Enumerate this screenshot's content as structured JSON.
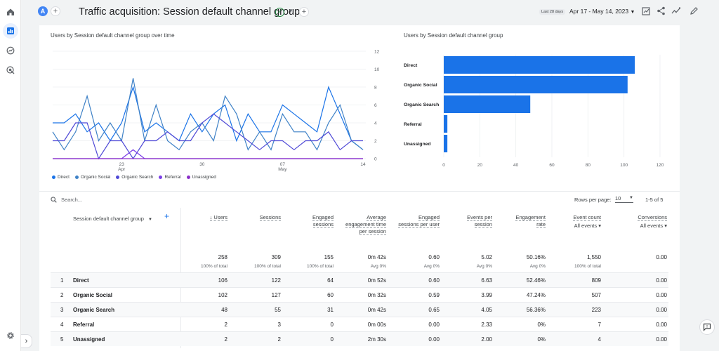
{
  "header": {
    "avatar_letter": "A",
    "title": "Traffic acquisition: Session default channel group",
    "date_chip": "Last 28 days",
    "date_range": "Apr 17 - May 14, 2023"
  },
  "line_chart": {
    "title": "Users by Session default channel group over time",
    "y_ticks": [
      "12",
      "10",
      "8",
      "6",
      "4",
      "2",
      "0"
    ],
    "x_ticks": [
      {
        "day": "23",
        "month": "Apr"
      },
      {
        "day": "30",
        "month": ""
      },
      {
        "day": "07",
        "month": "May"
      },
      {
        "day": "14",
        "month": ""
      }
    ],
    "legend": [
      {
        "label": "Direct",
        "color": "#1a73e8"
      },
      {
        "label": "Organic Social",
        "color": "#3f82c7"
      },
      {
        "label": "Organic Search",
        "color": "#4f49d6"
      },
      {
        "label": "Referral",
        "color": "#7b3ee6"
      },
      {
        "label": "Unassigned",
        "color": "#8b2fc9"
      }
    ]
  },
  "chart_data": [
    {
      "type": "line",
      "title": "Users by Session default channel group over time",
      "x": [
        "Apr 17",
        "Apr 18",
        "Apr 19",
        "Apr 20",
        "Apr 21",
        "Apr 22",
        "Apr 23",
        "Apr 24",
        "Apr 25",
        "Apr 26",
        "Apr 27",
        "Apr 28",
        "Apr 29",
        "Apr 30",
        "May 1",
        "May 2",
        "May 3",
        "May 4",
        "May 5",
        "May 6",
        "May 7",
        "May 8",
        "May 9",
        "May 10",
        "May 11",
        "May 12",
        "May 13",
        "May 14"
      ],
      "ylim": [
        0,
        12
      ],
      "series": [
        {
          "name": "Direct",
          "values": [
            4,
            4,
            5,
            3,
            4,
            2,
            4,
            8,
            3,
            4,
            3,
            2,
            5,
            3,
            5,
            6,
            2,
            5,
            3,
            3,
            6,
            5,
            4,
            3,
            8,
            5,
            2,
            1
          ]
        },
        {
          "name": "Organic Social",
          "values": [
            3,
            1,
            3,
            7,
            2,
            4,
            2,
            9,
            2,
            6,
            2,
            1,
            3,
            4,
            2,
            7,
            5,
            1,
            3,
            1,
            5,
            3,
            3,
            1,
            4,
            6,
            2,
            1
          ]
        },
        {
          "name": "Organic Search",
          "values": [
            2,
            2,
            4,
            4,
            0,
            2,
            2,
            0,
            2,
            2,
            3,
            2,
            2,
            4,
            5,
            4,
            3,
            2,
            1,
            2,
            2,
            1,
            2,
            2,
            3,
            1,
            2,
            2
          ]
        },
        {
          "name": "Referral",
          "values": [
            0,
            0,
            0,
            0,
            0,
            0,
            0,
            1,
            0,
            0,
            0,
            0,
            0,
            0,
            0,
            0,
            0,
            0,
            0,
            0,
            0,
            0,
            0,
            0,
            0,
            0,
            0,
            0
          ]
        },
        {
          "name": "Unassigned",
          "values": [
            0,
            0,
            0,
            0,
            0,
            0,
            0,
            0,
            0,
            0,
            0,
            0,
            0,
            0,
            0,
            0,
            0,
            0,
            0,
            0,
            0,
            0,
            0,
            0,
            0,
            0,
            0,
            0
          ]
        }
      ]
    },
    {
      "type": "bar",
      "title": "Users by Session default channel group",
      "categories": [
        "Direct",
        "Organic Social",
        "Organic Search",
        "Referral",
        "Unassigned"
      ],
      "values": [
        106,
        102,
        48,
        2,
        2
      ],
      "xlim": [
        0,
        120
      ],
      "x_ticks": [
        "0",
        "20",
        "40",
        "60",
        "80",
        "100",
        "120"
      ],
      "color": "#1a73e8"
    }
  ],
  "table": {
    "search_placeholder": "Search...",
    "rows_per_page_label": "Rows per page:",
    "rows_per_page_value": "10",
    "page_info": "1-5 of 5",
    "dimension_header": "Session default channel group",
    "columns": [
      {
        "label": "Users",
        "sub": "",
        "total": "258",
        "total_sub": "100% of total"
      },
      {
        "label": "Sessions",
        "sub": "",
        "total": "309",
        "total_sub": "100% of total"
      },
      {
        "label": "Engaged sessions",
        "sub": "",
        "total": "155",
        "total_sub": "100% of total"
      },
      {
        "label": "Average engagement time per session",
        "sub": "",
        "total": "0m 42s",
        "total_sub": "Avg 0%"
      },
      {
        "label": "Engaged sessions per user",
        "sub": "",
        "total": "0.60",
        "total_sub": "Avg 0%"
      },
      {
        "label": "Events per session",
        "sub": "",
        "total": "5.02",
        "total_sub": "Avg 0%"
      },
      {
        "label": "Engagement rate",
        "sub": "",
        "total": "50.16%",
        "total_sub": "Avg 0%"
      },
      {
        "label": "Event count",
        "sub": "All events",
        "total": "1,550",
        "total_sub": "100% of total"
      },
      {
        "label": "Conversions",
        "sub": "All events",
        "total": "0.00",
        "total_sub": ""
      }
    ],
    "rows": [
      {
        "idx": "1",
        "name": "Direct",
        "v": [
          "106",
          "122",
          "64",
          "0m 52s",
          "0.60",
          "6.63",
          "52.46%",
          "809",
          "0.00"
        ]
      },
      {
        "idx": "2",
        "name": "Organic Social",
        "v": [
          "102",
          "127",
          "60",
          "0m 32s",
          "0.59",
          "3.99",
          "47.24%",
          "507",
          "0.00"
        ]
      },
      {
        "idx": "3",
        "name": "Organic Search",
        "v": [
          "48",
          "55",
          "31",
          "0m 42s",
          "0.65",
          "4.05",
          "56.36%",
          "223",
          "0.00"
        ]
      },
      {
        "idx": "4",
        "name": "Referral",
        "v": [
          "2",
          "3",
          "0",
          "0m 00s",
          "0.00",
          "2.33",
          "0%",
          "7",
          "0.00"
        ]
      },
      {
        "idx": "5",
        "name": "Unassigned",
        "v": [
          "2",
          "2",
          "0",
          "2m 30s",
          "0.00",
          "2.00",
          "0%",
          "4",
          "0.00"
        ]
      }
    ]
  }
}
